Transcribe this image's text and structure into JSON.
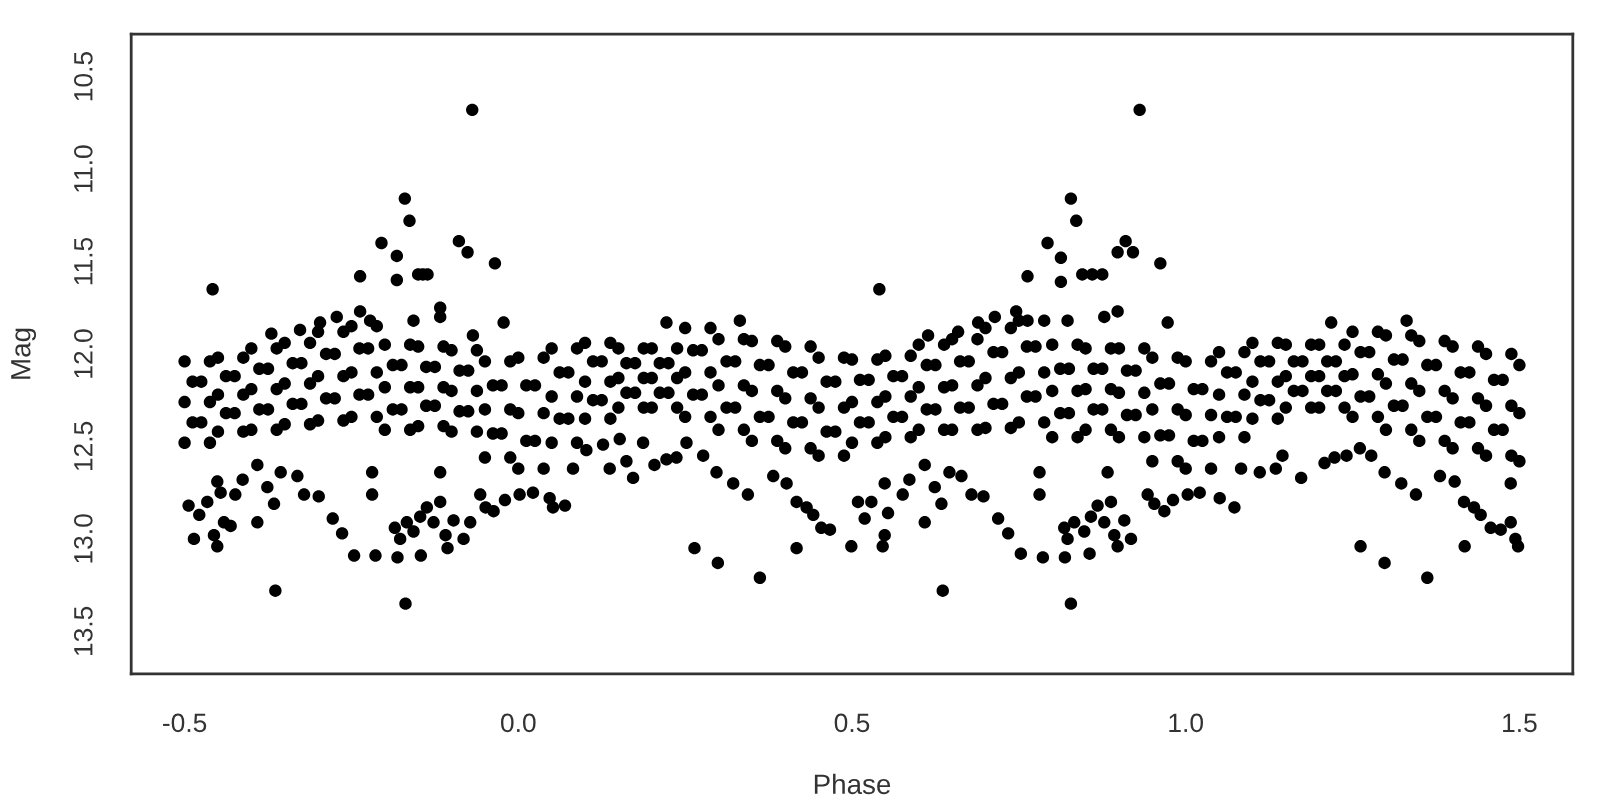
{
  "chart_data": {
    "type": "scatter",
    "xlabel": "Phase",
    "ylabel": "Mag",
    "xlim": [
      -0.58,
      1.58
    ],
    "ylim": [
      13.73,
      10.27
    ],
    "xticks": [
      -0.5,
      {
        "value": 0,
        "label": "0.0"
      },
      0.5,
      {
        "value": 1,
        "label": "1.0"
      },
      1.5
    ],
    "yticks": [
      10.5,
      {
        "value": 11,
        "label": "11.0"
      },
      11.5,
      {
        "value": 12,
        "label": "12.0"
      },
      12.5,
      {
        "value": 13,
        "label": "13.0"
      },
      13.5
    ],
    "grid": false,
    "marker": "circle",
    "series": [
      {
        "color": "#000000",
        "x": [
          -0.5,
          -0.475,
          -0.5,
          -0.475,
          -0.5,
          -0.45,
          -0.425,
          -0.45,
          -0.425,
          -0.45,
          -0.4,
          -0.375,
          -0.4,
          -0.375,
          -0.4,
          -0.35,
          -0.325,
          -0.35,
          -0.325,
          -0.35,
          -0.3,
          -0.275,
          -0.3,
          -0.275,
          -0.3,
          -0.25,
          -0.225,
          -0.25,
          -0.225,
          -0.25,
          -0.2,
          -0.175,
          -0.2,
          -0.175,
          -0.2,
          -0.15,
          -0.125,
          -0.15,
          -0.125,
          -0.15,
          -0.1,
          -0.075,
          -0.1,
          -0.075,
          -0.1,
          -0.05,
          -0.025,
          -0.05,
          -0.025,
          -0.05,
          0,
          0.025,
          0,
          0.025,
          0,
          0.05,
          0.075,
          0.05,
          0.075,
          0.05,
          0.1,
          0.125,
          0.1,
          0.125,
          0.1,
          0.15,
          0.175,
          0.15,
          0.175,
          0.15,
          0.2,
          0.225,
          0.2,
          0.225,
          0.2,
          0.25,
          0.275,
          0.25,
          0.275,
          0.25,
          0.3,
          0.325,
          0.3,
          0.325,
          0.3,
          0.35,
          0.375,
          0.35,
          0.375,
          0.35,
          0.4,
          0.425,
          0.4,
          0.425,
          0.4,
          0.45,
          0.475,
          0.45,
          0.475,
          0.45
        ],
        "values": [
          12.04,
          12.15,
          12.26,
          12.37,
          12.48,
          12.02,
          12.12,
          12.22,
          12.32,
          12.42,
          11.97,
          12.08,
          12.19,
          12.3,
          12.41,
          11.94,
          12.05,
          12.16,
          12.27,
          12.38,
          11.88,
          12.0,
          12.12,
          12.24,
          12.36,
          11.85,
          11.97,
          12.1,
          12.22,
          12.34,
          11.95,
          12.06,
          12.18,
          12.3,
          12.41,
          11.96,
          12.07,
          12.18,
          12.28,
          12.39,
          11.98,
          12.09,
          12.2,
          12.31,
          12.42,
          12.04,
          12.17,
          12.3,
          12.43,
          12.56,
          12.02,
          12.17,
          12.32,
          12.47,
          12.62,
          11.97,
          12.1,
          12.23,
          12.35,
          12.48,
          11.94,
          12.04,
          12.15,
          12.25,
          12.35,
          11.97,
          12.05,
          12.13,
          12.21,
          12.29,
          11.97,
          12.05,
          12.13,
          12.21,
          12.29,
          11.86,
          11.98,
          12.1,
          12.22,
          12.34,
          11.92,
          12.04,
          12.17,
          12.29,
          12.41,
          11.93,
          12.06,
          12.2,
          12.34,
          12.47,
          11.96,
          12.1,
          12.24,
          12.37,
          12.51,
          12.02,
          12.15,
          12.29,
          12.42,
          12.55
        ]
      },
      {
        "color": "#000000",
        "x": [
          0.5,
          0.525,
          0.5,
          0.525,
          0.5,
          0.55,
          0.575,
          0.55,
          0.575,
          0.55,
          0.6,
          0.625,
          0.6,
          0.625,
          0.6,
          0.65,
          0.675,
          0.65,
          0.675,
          0.65,
          0.7,
          0.725,
          0.7,
          0.725,
          0.7,
          0.75,
          0.775,
          0.75,
          0.775,
          0.75,
          0.8,
          0.825,
          0.8,
          0.825,
          0.8,
          0.85,
          0.875,
          0.85,
          0.875,
          0.85,
          0.9,
          0.925,
          0.9,
          0.925,
          0.9,
          0.95,
          0.975,
          0.95,
          0.975,
          0.95,
          1,
          1.025,
          1,
          1.025,
          1,
          1.05,
          1.075,
          1.05,
          1.075,
          1.05,
          1.1,
          1.125,
          1.1,
          1.125,
          1.1,
          1.15,
          1.175,
          1.15,
          1.175,
          1.15,
          1.2,
          1.225,
          1.2,
          1.225,
          1.2,
          1.25,
          1.275,
          1.25,
          1.275,
          1.25,
          1.3,
          1.325,
          1.3,
          1.325,
          1.3,
          1.35,
          1.375,
          1.35,
          1.375,
          1.35,
          1.4,
          1.425,
          1.4,
          1.425,
          1.4,
          1.45,
          1.475,
          1.45,
          1.475,
          1.45,
          1.5,
          1.5,
          1.5
        ],
        "values": [
          12.03,
          12.14,
          12.26,
          12.37,
          12.48,
          12.01,
          12.12,
          12.23,
          12.34,
          12.45,
          11.95,
          12.06,
          12.18,
          12.3,
          12.41,
          11.92,
          12.04,
          12.17,
          12.29,
          12.41,
          11.86,
          11.99,
          12.13,
          12.27,
          12.4,
          11.82,
          11.96,
          12.1,
          12.23,
          12.37,
          11.95,
          12.08,
          12.2,
          12.32,
          12.45,
          11.97,
          12.08,
          12.19,
          12.3,
          12.41,
          11.97,
          12.09,
          12.21,
          12.33,
          12.45,
          12.02,
          12.16,
          12.3,
          12.44,
          12.58,
          12.04,
          12.19,
          12.33,
          12.47,
          12.62,
          11.99,
          12.1,
          12.22,
          12.34,
          12.45,
          11.94,
          12.04,
          12.15,
          12.25,
          12.35,
          11.95,
          12.04,
          12.12,
          12.2,
          12.29,
          11.95,
          12.04,
          12.12,
          12.2,
          12.29,
          11.88,
          11.99,
          12.11,
          12.23,
          12.34,
          11.9,
          12.03,
          12.16,
          12.28,
          12.41,
          11.93,
          12.06,
          12.2,
          12.34,
          12.47,
          11.96,
          12.1,
          12.24,
          12.37,
          12.51,
          12.0,
          12.14,
          12.28,
          12.41,
          12.55,
          12.06,
          12.32,
          12.58
        ]
      },
      {
        "color": "#000000",
        "x": [
          -0.488,
          -0.488,
          -0.462,
          -0.462,
          -0.462,
          -0.438,
          -0.438,
          -0.412,
          -0.412,
          -0.412,
          -0.388,
          -0.388,
          -0.362,
          -0.362,
          -0.362,
          -0.338,
          -0.338,
          -0.312,
          -0.312,
          -0.312,
          -0.288,
          -0.288,
          -0.262,
          -0.262,
          -0.262,
          -0.238,
          -0.238,
          -0.212,
          -0.212,
          -0.212,
          -0.188,
          -0.188,
          -0.162,
          -0.162,
          -0.162,
          -0.138,
          -0.138,
          -0.112,
          -0.112,
          -0.112,
          -0.088,
          -0.088,
          -0.062,
          -0.062,
          -0.062,
          -0.038,
          -0.038,
          -0.012,
          -0.012,
          -0.012,
          0.012,
          0.012,
          0.038,
          0.038,
          0.038,
          0.062,
          0.062,
          0.088,
          0.088,
          0.088,
          0.112,
          0.112,
          0.138,
          0.138,
          0.138,
          0.162,
          0.162,
          0.188,
          0.188,
          0.188,
          0.212,
          0.212,
          0.238,
          0.238,
          0.238,
          0.262,
          0.262,
          0.288,
          0.288,
          0.288,
          0.312,
          0.312,
          0.338,
          0.338,
          0.338,
          0.362,
          0.362,
          0.388,
          0.388,
          0.388,
          0.412,
          0.412,
          0.438,
          0.438,
          0.438,
          0.462,
          0.462,
          0.488,
          0.488,
          0.488
        ],
        "values": [
          12.15,
          12.37,
          12.04,
          12.26,
          12.48,
          12.12,
          12.32,
          12.02,
          12.22,
          12.42,
          12.08,
          12.3,
          11.97,
          12.19,
          12.41,
          12.05,
          12.27,
          11.94,
          12.16,
          12.38,
          12.0,
          12.24,
          11.88,
          12.12,
          12.36,
          11.97,
          12.22,
          11.85,
          12.1,
          12.34,
          12.06,
          12.3,
          11.95,
          12.18,
          12.41,
          12.07,
          12.28,
          11.96,
          12.18,
          12.39,
          12.09,
          12.31,
          11.98,
          12.2,
          12.42,
          12.17,
          12.43,
          12.04,
          12.3,
          12.56,
          12.17,
          12.47,
          12.02,
          12.32,
          12.62,
          12.1,
          12.35,
          11.97,
          12.23,
          12.48,
          12.04,
          12.25,
          11.94,
          12.15,
          12.35,
          12.05,
          12.21,
          11.97,
          12.13,
          12.29,
          12.05,
          12.21,
          11.97,
          12.13,
          12.29,
          11.98,
          12.22,
          11.86,
          12.1,
          12.34,
          12.04,
          12.29,
          11.92,
          12.17,
          12.41,
          12.06,
          12.34,
          11.93,
          12.2,
          12.47,
          12.1,
          12.37,
          11.96,
          12.24,
          12.51,
          12.15,
          12.42,
          12.02,
          12.29,
          12.55
        ]
      },
      {
        "color": "#000000",
        "x": [
          0.512,
          0.512,
          0.538,
          0.538,
          0.538,
          0.562,
          0.562,
          0.588,
          0.588,
          0.588,
          0.612,
          0.612,
          0.638,
          0.638,
          0.638,
          0.662,
          0.662,
          0.688,
          0.688,
          0.688,
          0.712,
          0.712,
          0.738,
          0.738,
          0.738,
          0.762,
          0.762,
          0.788,
          0.788,
          0.788,
          0.812,
          0.812,
          0.838,
          0.838,
          0.838,
          0.862,
          0.862,
          0.888,
          0.888,
          0.888,
          0.912,
          0.912,
          0.938,
          0.938,
          0.938,
          0.962,
          0.962,
          0.988,
          0.988,
          0.988,
          1.012,
          1.012,
          1.038,
          1.038,
          1.038,
          1.062,
          1.062,
          1.088,
          1.088,
          1.088,
          1.112,
          1.112,
          1.138,
          1.138,
          1.138,
          1.162,
          1.162,
          1.188,
          1.188,
          1.188,
          1.212,
          1.212,
          1.238,
          1.238,
          1.238,
          1.262,
          1.262,
          1.288,
          1.288,
          1.288,
          1.312,
          1.312,
          1.338,
          1.338,
          1.338,
          1.362,
          1.362,
          1.388,
          1.388,
          1.388,
          1.412,
          1.412,
          1.438,
          1.438,
          1.438,
          1.462,
          1.462,
          1.488,
          1.488,
          1.488
        ],
        "values": [
          12.14,
          12.37,
          12.03,
          12.26,
          12.48,
          12.12,
          12.34,
          12.01,
          12.23,
          12.45,
          12.06,
          12.3,
          11.95,
          12.18,
          12.41,
          12.04,
          12.29,
          11.92,
          12.17,
          12.41,
          11.99,
          12.27,
          11.86,
          12.13,
          12.4,
          11.96,
          12.23,
          11.82,
          12.1,
          12.37,
          12.08,
          12.32,
          11.95,
          12.2,
          12.45,
          12.08,
          12.3,
          11.97,
          12.19,
          12.41,
          12.09,
          12.33,
          11.97,
          12.21,
          12.45,
          12.16,
          12.44,
          12.02,
          12.3,
          12.58,
          12.19,
          12.47,
          12.04,
          12.33,
          12.62,
          12.1,
          12.34,
          11.99,
          12.22,
          12.45,
          12.04,
          12.25,
          11.94,
          12.15,
          12.35,
          12.04,
          12.2,
          11.95,
          12.12,
          12.29,
          12.04,
          12.2,
          11.95,
          12.12,
          12.29,
          11.99,
          12.23,
          11.88,
          12.11,
          12.34,
          12.03,
          12.28,
          11.9,
          12.16,
          12.41,
          12.06,
          12.34,
          11.93,
          12.2,
          12.47,
          12.1,
          12.37,
          11.96,
          12.24,
          12.51,
          12.14,
          12.41,
          12.0,
          12.28,
          12.55
        ]
      },
      {
        "color": "#000000",
        "x": [
          -0.458,
          -0.069,
          -0.17,
          -0.163,
          -0.205,
          -0.237,
          -0.182,
          -0.182,
          -0.15,
          -0.143,
          -0.136,
          -0.089,
          -0.076,
          -0.035,
          -0.117,
          -0.117,
          -0.068,
          -0.022,
          -0.37,
          -0.327,
          -0.297,
          -0.272,
          -0.237,
          -0.222,
          -0.157,
          0.222,
          0.332,
          -0.364,
          -0.169,
          -0.246,
          -0.214,
          -0.181,
          -0.146,
          -0.106,
          -0.494,
          -0.486,
          -0.478,
          -0.466,
          -0.456,
          -0.451,
          -0.441,
          -0.431,
          -0.446,
          -0.451,
          -0.424,
          -0.413,
          -0.391,
          -0.391,
          -0.376,
          -0.366,
          -0.356,
          -0.331,
          -0.321,
          -0.299,
          -0.278,
          -0.264,
          -0.219,
          -0.219,
          -0.185,
          -0.177,
          -0.167,
          -0.157,
          -0.147,
          -0.137,
          -0.127,
          -0.117,
          -0.109,
          -0.097,
          -0.082,
          -0.072,
          -0.117,
          -0.057,
          -0.049,
          -0.037,
          -0.02,
          0.002,
          0.022,
          0.047,
          0.052,
          0.07,
          0.082,
          0.102,
          0.127,
          0.137,
          0.152,
          0.162,
          0.172,
          0.187,
          0.204,
          0.222,
          0.237,
          0.252,
          0.264,
          0.277,
          0.297,
          0.299,
          0.322,
          0.344,
          0.362,
          0.382,
          0.402,
          0.417,
          0.417,
          0.432,
          0.442,
          0.454,
          0.467
        ],
        "values": [
          11.65,
          10.68,
          11.16,
          11.28,
          11.4,
          11.58,
          11.47,
          11.6,
          11.57,
          11.57,
          11.57,
          11.39,
          11.45,
          11.51,
          11.75,
          11.8,
          11.9,
          11.83,
          11.89,
          11.87,
          11.83,
          11.8,
          11.77,
          11.82,
          11.82,
          11.83,
          11.82,
          13.28,
          13.35,
          13.09,
          13.09,
          13.1,
          13.09,
          13.05,
          12.82,
          13.0,
          12.87,
          12.8,
          12.98,
          13.04,
          12.91,
          12.93,
          12.75,
          12.69,
          12.76,
          12.68,
          12.91,
          12.6,
          12.72,
          12.81,
          12.64,
          12.66,
          12.76,
          12.77,
          12.89,
          12.97,
          12.64,
          12.76,
          12.94,
          13.0,
          12.91,
          12.96,
          12.88,
          12.83,
          12.91,
          12.8,
          12.98,
          12.9,
          13.0,
          12.91,
          12.64,
          12.76,
          12.83,
          12.85,
          12.79,
          12.76,
          12.75,
          12.78,
          12.83,
          12.82,
          12.62,
          12.52,
          12.49,
          12.62,
          12.46,
          12.58,
          12.67,
          12.48,
          12.6,
          12.57,
          12.56,
          12.48,
          13.05,
          12.55,
          12.64,
          13.13,
          12.7,
          12.76,
          13.21,
          12.66,
          12.7,
          13.05,
          12.8,
          12.83,
          12.87,
          12.94,
          12.95
        ]
      },
      {
        "color": "#000000",
        "x": [
          0.541,
          0.931,
          0.828,
          0.836,
          0.793,
          0.763,
          0.813,
          0.813,
          0.845,
          0.86,
          0.875,
          0.898,
          0.91,
          0.921,
          0.962,
          0.614,
          0.659,
          0.689,
          0.714,
          0.746,
          0.763,
          0.823,
          0.878,
          0.898,
          0.973,
          1.218,
          1.331,
          0.636,
          0.828,
          0.753,
          0.786,
          0.819,
          0.856,
          0.898,
          1.262,
          1.298,
          1.362,
          1.418,
          1.498,
          0.499,
          0.509,
          0.519,
          0.529,
          0.549,
          0.546,
          0.554,
          0.549,
          0.576,
          0.586,
          0.609,
          0.609,
          0.624,
          0.634,
          0.646,
          0.664,
          0.679,
          0.697,
          0.719,
          0.734,
          0.781,
          0.781,
          0.818,
          0.823,
          0.833,
          0.848,
          0.858,
          0.868,
          0.878,
          0.888,
          0.893,
          0.908,
          0.918,
          0.883,
          0.943,
          0.953,
          0.968,
          0.981,
          1.003,
          1.021,
          1.051,
          1.073,
          1.083,
          1.111,
          1.135,
          1.145,
          1.173,
          1.208,
          1.223,
          1.241,
          1.261,
          1.278,
          1.298,
          1.323,
          1.345,
          1.381,
          1.403,
          1.417,
          1.432,
          1.442,
          1.457,
          1.472,
          1.487,
          1.487,
          1.494
        ],
        "values": [
          11.65,
          10.68,
          11.16,
          11.28,
          11.4,
          11.58,
          11.48,
          11.61,
          11.57,
          11.57,
          11.57,
          11.45,
          11.39,
          11.45,
          11.51,
          11.9,
          11.88,
          11.83,
          11.8,
          11.77,
          11.82,
          11.82,
          11.8,
          11.77,
          11.83,
          11.83,
          11.82,
          13.28,
          13.35,
          13.08,
          13.1,
          13.1,
          13.08,
          13.04,
          13.04,
          13.13,
          13.21,
          13.04,
          13.04,
          13.04,
          12.8,
          12.89,
          12.8,
          12.98,
          13.04,
          12.86,
          12.7,
          12.76,
          12.68,
          12.91,
          12.6,
          12.72,
          12.81,
          12.64,
          12.66,
          12.76,
          12.77,
          12.89,
          12.97,
          12.64,
          12.76,
          12.94,
          13.0,
          12.91,
          12.96,
          12.88,
          12.82,
          12.91,
          12.8,
          12.98,
          12.9,
          13.0,
          12.64,
          12.76,
          12.81,
          12.85,
          12.79,
          12.76,
          12.75,
          12.78,
          12.83,
          12.62,
          12.64,
          12.62,
          12.55,
          12.67,
          12.59,
          12.56,
          12.55,
          12.51,
          12.55,
          12.64,
          12.7,
          12.76,
          12.66,
          12.69,
          12.8,
          12.83,
          12.87,
          12.94,
          12.95,
          12.7,
          12.91,
          13.0
        ]
      }
    ]
  }
}
